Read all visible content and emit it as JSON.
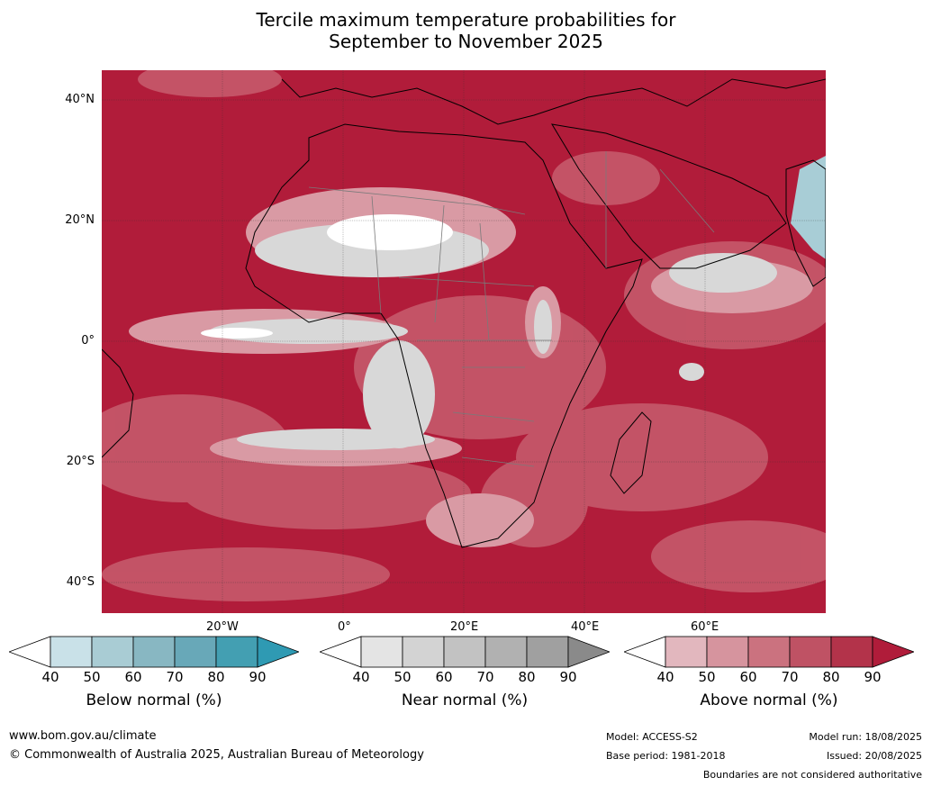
{
  "title_line1": "Tercile maximum temperature probabilities for",
  "title_line2": "September to November 2025",
  "lat_labels": [
    "40°N",
    "20°N",
    "0°",
    "20°S",
    "40°S"
  ],
  "lon_labels": [
    "20°W",
    "0°",
    "20°E",
    "40°E",
    "60°E"
  ],
  "colorbars": [
    {
      "title": "Below normal (%)",
      "ticks": [
        "40",
        "50",
        "60",
        "70",
        "80",
        "90"
      ],
      "colors": [
        "#c9e1e8",
        "#a9ccd4",
        "#88b7c2",
        "#68a8b8",
        "#439fb2"
      ],
      "arrow": "#2f9ab3"
    },
    {
      "title": "Near normal (%)",
      "ticks": [
        "40",
        "50",
        "60",
        "70",
        "80",
        "90"
      ],
      "colors": [
        "#e4e4e4",
        "#d3d3d3",
        "#c2c2c2",
        "#b1b1b1",
        "#a0a0a0"
      ],
      "arrow": "#8a8a8a"
    },
    {
      "title": "Above normal (%)",
      "ticks": [
        "40",
        "50",
        "60",
        "70",
        "80",
        "90"
      ],
      "colors": [
        "#e2b7be",
        "#d6949e",
        "#cb727f",
        "#bf5264",
        "#b3334a"
      ],
      "arrow": "#b01c3a"
    }
  ],
  "footer": {
    "url": "www.bom.gov.au/climate",
    "copyright": "© Commonwealth of Australia 2025, Australian Bureau of Meteorology",
    "model": "Model: ACCESS-S2",
    "base_period": "Base period: 1981-2018",
    "model_run": "Model run: 18/08/2025",
    "issued": "Issued: 20/08/2025",
    "disclaimer": "Boundaries are not considered authoritative"
  },
  "colors": {
    "above_dark": "#b11c3a",
    "above_mid": "#c65a6b",
    "above_light": "#d99aa4",
    "near_light": "#dcdcdc",
    "below_light": "#a8cdd6"
  }
}
